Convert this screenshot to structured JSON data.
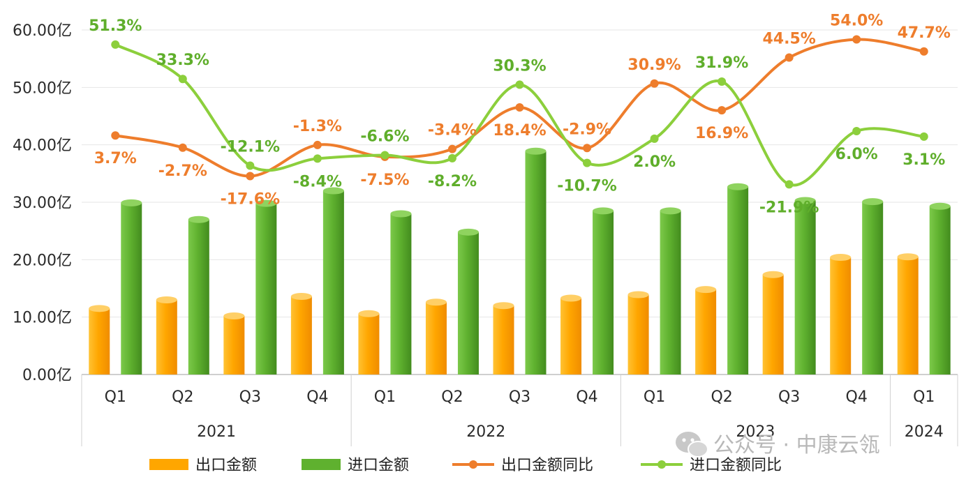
{
  "chart_data": {
    "type": "bar",
    "title": "",
    "years": [
      {
        "label": "2021",
        "count": 4
      },
      {
        "label": "2022",
        "count": 4
      },
      {
        "label": "2023",
        "count": 4
      },
      {
        "label": "2024",
        "count": 1
      }
    ],
    "categories": [
      "Q1",
      "Q2",
      "Q3",
      "Q4",
      "Q1",
      "Q2",
      "Q3",
      "Q4",
      "Q1",
      "Q2",
      "Q3",
      "Q4",
      "Q1"
    ],
    "y_ticks": [
      "0.00亿",
      "10.00亿",
      "20.00亿",
      "30.00亿",
      "40.00亿",
      "50.00亿",
      "60.00亿"
    ],
    "ylim": [
      0,
      60
    ],
    "series": [
      {
        "name": "出口金额",
        "type": "bar",
        "color": "#ffa600",
        "values": [
          11.5,
          13.0,
          10.2,
          13.6,
          10.6,
          12.6,
          12.0,
          13.3,
          13.9,
          14.8,
          17.4,
          20.4,
          20.5
        ]
      },
      {
        "name": "进口金额",
        "type": "bar",
        "color": "#5fb12f",
        "values": [
          29.9,
          27.0,
          29.8,
          32.0,
          28.0,
          24.8,
          38.9,
          28.5,
          28.5,
          32.7,
          30.3,
          30.1,
          29.3
        ]
      }
    ],
    "line_series": [
      {
        "name": "出口金额同比",
        "color": "#ee7d2c",
        "values": [
          3.7,
          -2.7,
          -17.6,
          -1.3,
          -7.5,
          -3.4,
          18.4,
          -2.9,
          30.9,
          16.9,
          44.5,
          54.0,
          47.7
        ],
        "labels": [
          "3.7%",
          "-2.7%",
          "-17.6%",
          "-1.3%",
          "-7.5%",
          "-3.4%",
          "18.4%",
          "-2.9%",
          "30.9%",
          "16.9%",
          "44.5%",
          "54.0%",
          "47.7%"
        ]
      },
      {
        "name": "进口金额同比",
        "color": "#8ccf3c",
        "values": [
          51.3,
          33.3,
          -12.1,
          -8.4,
          -6.6,
          -8.2,
          30.3,
          -10.7,
          2.0,
          31.9,
          -21.9,
          6.0,
          3.1
        ],
        "labels": [
          "51.3%",
          "33.3%",
          "-12.1%",
          "-8.4%",
          "-6.6%",
          "-8.2%",
          "30.3%",
          "-10.7%",
          "2.0%",
          "31.9%",
          "-21.9%",
          "6.0%",
          "3.1%"
        ]
      }
    ],
    "legend_position": "bottom",
    "grid": true
  },
  "watermark": {
    "text": "公众号 · 中康云瓴"
  }
}
